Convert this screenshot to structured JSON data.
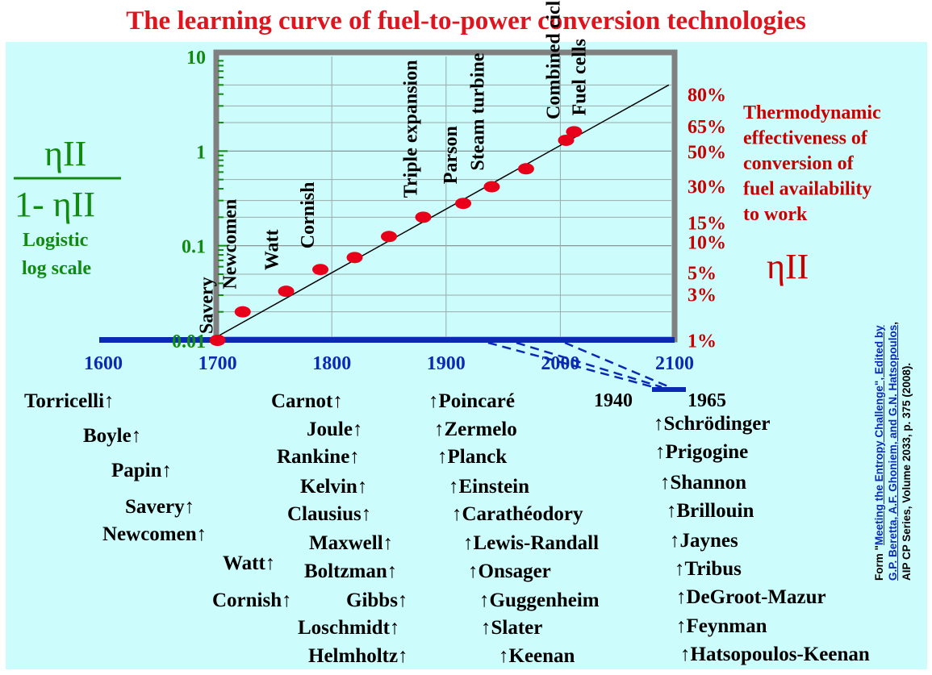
{
  "title": "The learning curve of fuel-to-power conversion technologies",
  "chart_data": {
    "type": "scatter",
    "x_axis": {
      "ticks": [
        "1600",
        "1700",
        "1800",
        "1900",
        "2000",
        "2100"
      ],
      "range": [
        1600,
        2100
      ]
    },
    "y_axis_left": {
      "label_formula_num": "ηII",
      "label_formula_den": "1- ηII",
      "scale_label_line1": "Logistic",
      "scale_label_line2": "log scale",
      "ticks": [
        "10",
        "1",
        "0.1",
        "0.01"
      ],
      "range": [
        0.01,
        10
      ],
      "scale": "log"
    },
    "y_axis_right": {
      "ticks": [
        "80%",
        "65%",
        "50%",
        "30%",
        "15%",
        "10%",
        "5%",
        "3%",
        "1%"
      ],
      "description_lines": [
        "Thermodynamic",
        "effectiveness of",
        "conversion of",
        "fuel availability",
        "to work"
      ],
      "symbol": "ηII"
    },
    "points": [
      {
        "label": "Savery",
        "x": 1700,
        "y": 0.01
      },
      {
        "label": "Newcomen",
        "x": 1722,
        "y": 0.02
      },
      {
        "label": "Watt",
        "x": 1760,
        "y": 0.033
      },
      {
        "label": "Cornish",
        "x": 1790,
        "y": 0.056
      },
      {
        "label": "",
        "x": 1820,
        "y": 0.075
      },
      {
        "label": "",
        "x": 1850,
        "y": 0.125
      },
      {
        "label": "Triple expansion",
        "x": 1880,
        "y": 0.2
      },
      {
        "label": "Parson",
        "x": 1915,
        "y": 0.28
      },
      {
        "label": "Steam turbine",
        "x": 1940,
        "y": 0.42
      },
      {
        "label": "",
        "x": 1970,
        "y": 0.65
      },
      {
        "label": "Combined cicle",
        "x": 2005,
        "y": 1.3
      },
      {
        "label": "Fuel cells",
        "x": 2012,
        "y": 1.6
      }
    ],
    "trend_line": {
      "x": [
        1700,
        2095
      ],
      "y": [
        0.011,
        5.0
      ]
    },
    "inset_years": {
      "left": "1940",
      "right": "1965"
    }
  },
  "names": {
    "col1": [
      "Torricelli↑",
      "Boyle↑",
      "Papin↑",
      "Savery↑",
      "Newcomen↑",
      "Watt↑",
      "Cornish↑"
    ],
    "col2": [
      "Carnot↑",
      "Joule↑",
      "Rankine↑",
      "Kelvin↑",
      "Clausius↑",
      "Maxwell↑",
      "Boltzman↑",
      "Gibbs↑",
      "Loschmidt↑",
      "Helmholtz↑"
    ],
    "col3": [
      "↑Poincaré",
      "↑Zermelo",
      "↑Planck",
      "↑Einstein",
      "↑Carathéodory",
      "↑Lewis-Randall",
      "↑Onsager",
      "↑Guggenheim",
      "↑Slater",
      "↑Keenan"
    ],
    "col4": [
      "↑Schrödinger",
      "↑Prigogine",
      "↑Shannon",
      "↑Brillouin",
      "↑Jaynes",
      "↑Tribus",
      "↑DeGroot-Mazur",
      "↑Feynman",
      "↑Hatsopoulos-Keenan"
    ]
  },
  "credit": {
    "prefix": "Form \"",
    "link": "Meeting the Entropy Challenge\", Edited by G.P. Beretta, A.F. Ghoniem, and G.N. Hatsopoulos",
    "link_line1": "Meeting the Entropy Challenge\", Edited by",
    "link_line2": "G.P. Beretta, A.F. Ghoniem, and G.N. Hatsopoulos",
    "suffix": ",",
    "line3": "AIP CP Series, Volume 2033,  p. 375 (2008)."
  },
  "colors": {
    "title": "#e0141e",
    "green": "#128a12",
    "red_axis": "#c80000",
    "blue_axis": "#0a2ab4",
    "panel": "#ccfcfc",
    "point": "#e8001a"
  }
}
